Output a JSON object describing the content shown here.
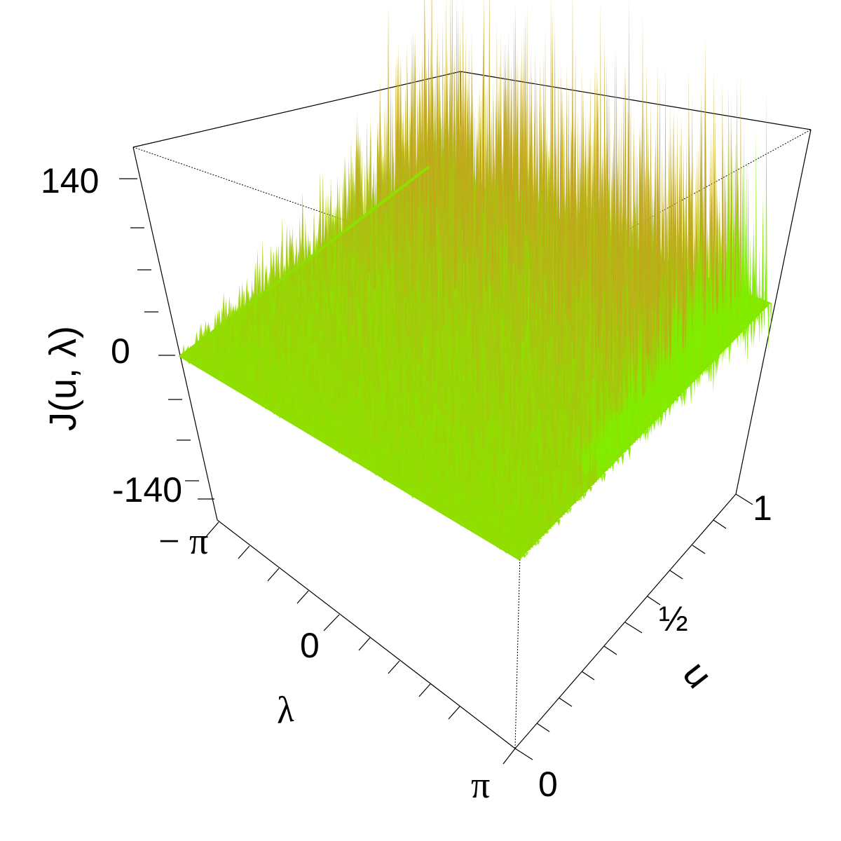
{
  "chart_data": {
    "type": "surface3d",
    "z_axis": {
      "title": "J(u, λ)",
      "ticks": [
        "140",
        "0",
        "-140"
      ],
      "range": [
        -140,
        140
      ]
    },
    "lambda_axis": {
      "title": "λ",
      "ticks": [
        "− π",
        "0",
        "π"
      ],
      "range": [
        -3.1416,
        3.1416
      ]
    },
    "u_axis": {
      "title": "u",
      "ticks": [
        "0",
        "½",
        "1"
      ],
      "range": [
        0,
        1
      ]
    },
    "surface": {
      "description": "noisy periodogram-like surface; spike amplitude grows with u",
      "amplitude_at_u": [
        [
          0,
          8
        ],
        [
          0.5,
          40
        ],
        [
          1,
          120
        ]
      ],
      "color_low": "#8fe000",
      "color_high": "#c8a020",
      "color_side": "#7ef000"
    },
    "grid": false
  }
}
